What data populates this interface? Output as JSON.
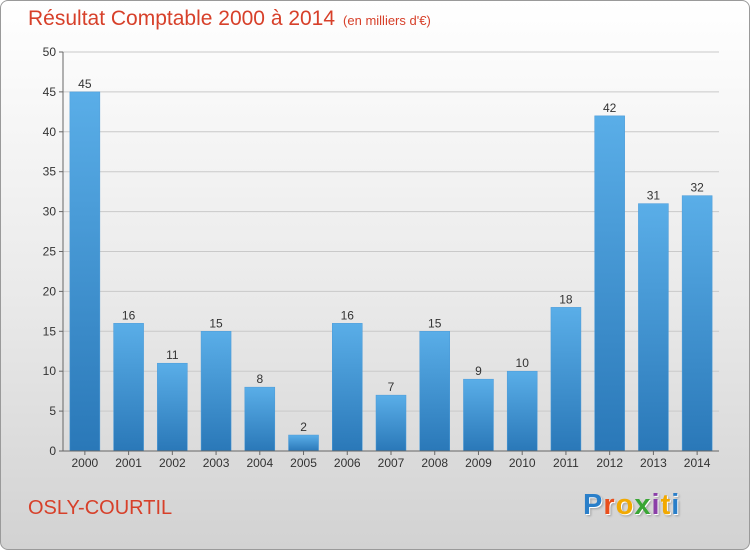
{
  "title": "Résultat Comptable 2000 à 2014",
  "subtitle": "(en milliers d'€)",
  "city": "OSLY-COURTIL",
  "logo": {
    "text": "Proxiti"
  },
  "colors": {
    "title": "#d7402a",
    "bar_top": "#5aaee8",
    "bar_bottom": "#2a78b8",
    "grid": "#c9c9c9",
    "axis": "#666666"
  },
  "chart_data": {
    "type": "bar",
    "title": "Résultat Comptable 2000 à 2014",
    "subtitle": "(en milliers d'€)",
    "xlabel": "",
    "ylabel": "",
    "categories": [
      "2000",
      "2001",
      "2002",
      "2003",
      "2004",
      "2005",
      "2006",
      "2007",
      "2008",
      "2009",
      "2010",
      "2011",
      "2012",
      "2013",
      "2014"
    ],
    "values": [
      45,
      16,
      11,
      15,
      8,
      2,
      16,
      7,
      15,
      9,
      10,
      18,
      42,
      31,
      32
    ],
    "ylim": [
      0,
      50
    ],
    "yticks": [
      0,
      5,
      10,
      15,
      20,
      25,
      30,
      35,
      40,
      45,
      50
    ],
    "grid": true,
    "legend": "none"
  }
}
